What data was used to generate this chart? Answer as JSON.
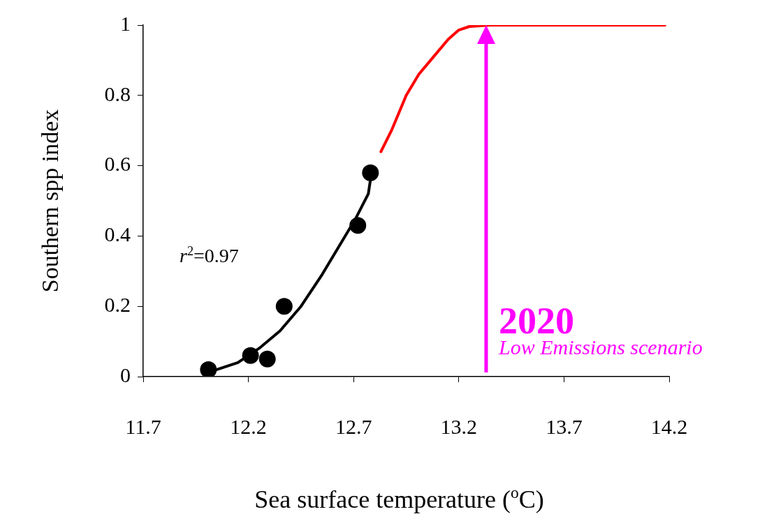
{
  "chart_data": {
    "type": "scatter",
    "xlabel": "Sea surface temperature ($^{o}$C)",
    "ylabel": "Southern spp index",
    "xlim": [
      11.7,
      14.2
    ],
    "xticks": [
      11.7,
      12.2,
      12.7,
      13.2,
      13.7,
      14.2
    ],
    "ylim": [
      0,
      1
    ],
    "yticks": [
      0,
      0.2,
      0.4,
      0.6,
      0.8,
      1
    ],
    "grid": false,
    "legend": false,
    "series": [
      {
        "type": "scatter",
        "color": "#000000",
        "marker": "circle",
        "x": [
          12.01,
          12.21,
          12.29,
          12.37,
          12.72,
          12.78
        ],
        "values": [
          0.02,
          0.06,
          0.05,
          0.2,
          0.43,
          0.58
        ]
      },
      {
        "type": "line",
        "color": "#000000",
        "marker": "none",
        "x": [
          12.05,
          12.15,
          12.25,
          12.35,
          12.45,
          12.55,
          12.65,
          12.71,
          12.77,
          12.78
        ],
        "values": [
          0.02,
          0.04,
          0.08,
          0.13,
          0.2,
          0.29,
          0.39,
          0.45,
          0.52,
          0.56
        ]
      },
      {
        "type": "line",
        "color": "#ff0000",
        "marker": "none",
        "x": [
          12.83,
          12.88,
          12.95,
          13.01,
          13.08,
          13.15,
          13.2,
          13.25,
          13.35,
          13.6,
          14.18
        ],
        "values": [
          0.64,
          0.7,
          0.8,
          0.86,
          0.91,
          0.96,
          0.986,
          0.996,
          1,
          1,
          1
        ]
      }
    ],
    "ref_lines": [
      {
        "axis": "x",
        "value": 13.33,
        "color": "#ff00ff"
      }
    ],
    "annotations": [
      "r$^{2}$=0.97",
      {
        "text": "2020",
        "x": 13.33,
        "y": 0.15
      },
      {
        "text": "Low Emissions scenario",
        "x": 13.33,
        "y": 0.08
      }
    ]
  }
}
